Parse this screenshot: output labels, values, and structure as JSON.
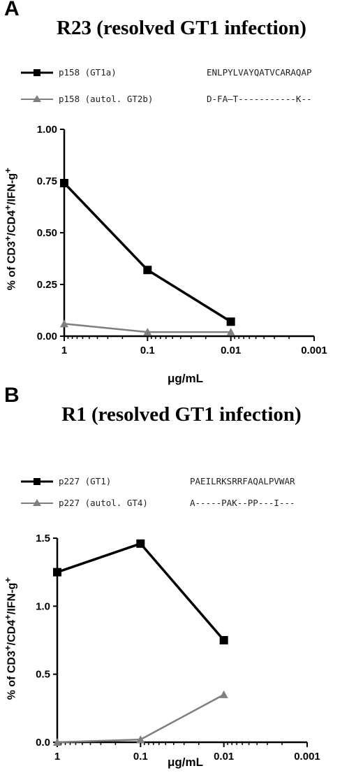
{
  "chart_data": [
    {
      "type": "line",
      "panel_letter": "A",
      "title": "R23 (resolved GT1 infection)",
      "xlabel": "μg/mL",
      "ylabel_parts": [
        "% of CD3",
        "+",
        "/CD4",
        "+",
        "/IFN-g",
        "+"
      ],
      "x_scale": "log",
      "x_reversed": true,
      "x_ticks": [
        "1",
        "0.1",
        "0.01",
        "0.001"
      ],
      "y_ticks": [
        "0.00",
        "0.25",
        "0.50",
        "0.75",
        "1.00"
      ],
      "ylim": [
        0,
        1.0
      ],
      "x": [
        1,
        0.1,
        0.01
      ],
      "series": [
        {
          "name": "p158 (GT1a)",
          "sequence": "ENLPYLVAYQATVCARAQAP",
          "values": [
            0.74,
            0.32,
            0.07
          ],
          "color": "#000000",
          "marker": "square"
        },
        {
          "name": "p158 (autol. GT2b)",
          "sequence": "D-FA—T-----------K--",
          "values": [
            0.06,
            0.02,
            0.02
          ],
          "color": "#7f7f7f",
          "marker": "triangle"
        }
      ]
    },
    {
      "type": "line",
      "panel_letter": "B",
      "title": "R1 (resolved GT1 infection)",
      "xlabel": "μg/mL",
      "ylabel_parts": [
        "% of CD3",
        "+",
        "/CD4",
        "+",
        "/IFN-g",
        "+"
      ],
      "x_scale": "log",
      "x_reversed": true,
      "x_ticks": [
        "1",
        "0.1",
        "0.01",
        "0.001"
      ],
      "y_ticks": [
        "0.0",
        "0.5",
        "1.0",
        "1.5"
      ],
      "ylim": [
        0,
        1.5
      ],
      "x": [
        1,
        0.1,
        0.01
      ],
      "series": [
        {
          "name": "p227 (GT1)",
          "sequence": "PAEILRKSRRFAQALPVWAR",
          "values": [
            1.25,
            1.46,
            0.75
          ],
          "color": "#000000",
          "marker": "square"
        },
        {
          "name": "p227 (autol. GT4)",
          "sequence": "A-----PAK--PP---I---",
          "values": [
            0.0,
            0.02,
            0.35
          ],
          "color": "#7f7f7f",
          "marker": "triangle"
        }
      ]
    }
  ]
}
